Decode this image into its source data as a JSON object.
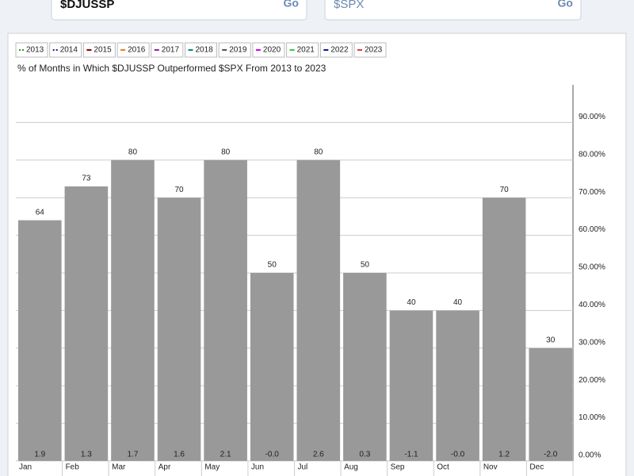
{
  "inputs": [
    {
      "value": "$DJUSSP",
      "button": "Go"
    },
    {
      "value": "$SPX",
      "button": "Go"
    }
  ],
  "chart_data": {
    "type": "bar",
    "title": "% of Months in Which $DJUSSP Outperformed $SPX From 2013 to 2023",
    "legend": [
      {
        "name": "2013",
        "color": "#2e9e2e"
      },
      {
        "name": "2014",
        "color": "#1a237e"
      },
      {
        "name": "2015",
        "color": "#8b0000"
      },
      {
        "name": "2016",
        "color": "#e67e22"
      },
      {
        "name": "2017",
        "color": "#8e24aa"
      },
      {
        "name": "2018",
        "color": "#00897b"
      },
      {
        "name": "2019",
        "color": "#555555"
      },
      {
        "name": "2020",
        "color": "#d500f9"
      },
      {
        "name": "2021",
        "color": "#2ecc40"
      },
      {
        "name": "2022",
        "color": "#0d1b8c"
      },
      {
        "name": "2023",
        "color": "#e53935"
      }
    ],
    "categories": [
      "Jan",
      "Feb",
      "Mar",
      "Apr",
      "May",
      "Jun",
      "Jul",
      "Aug",
      "Sep",
      "Oct",
      "Nov",
      "Dec"
    ],
    "values": [
      64,
      73,
      80,
      70,
      80,
      50,
      80,
      50,
      40,
      40,
      70,
      30
    ],
    "color": "#999999",
    "avg_return": {
      "values": [
        1.9,
        1.3,
        1.7,
        1.6,
        2.1,
        0,
        2.6,
        0.3,
        -1.1,
        0,
        1.2,
        -2.0
      ],
      "value_labels": [
        "1.9",
        "1.3",
        "1.7",
        "1.6",
        "2.1",
        "-0.0",
        "2.6",
        "0.3",
        "-1.1",
        "-0.0",
        "1.2",
        "-2.0"
      ]
    },
    "ylim": [
      0,
      100
    ],
    "yticks": [
      {
        "value": 0,
        "label": "0.00%"
      },
      {
        "value": 10,
        "label": "10.00%"
      },
      {
        "value": 20,
        "label": "20.00%"
      },
      {
        "value": 30,
        "label": "30.00%"
      },
      {
        "value": 40,
        "label": "40.00%"
      },
      {
        "value": 50,
        "label": "50.00%"
      },
      {
        "value": 60,
        "label": "60.00%"
      },
      {
        "value": 70,
        "label": "70.00%"
      },
      {
        "value": 80,
        "label": "80.00%"
      },
      {
        "value": 90,
        "label": "90.00%"
      }
    ],
    "grid": true
  }
}
